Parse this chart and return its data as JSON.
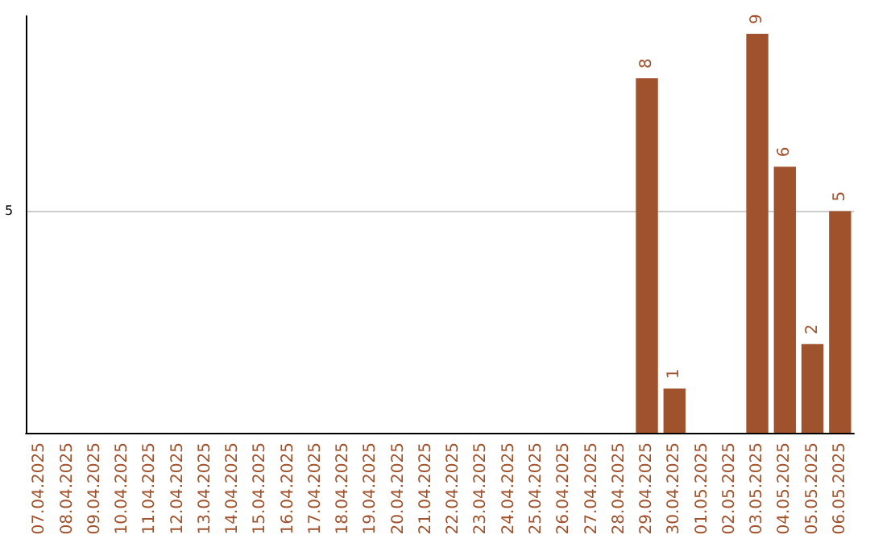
{
  "chart_data": {
    "type": "bar",
    "categories": [
      "07.04.2025",
      "08.04.2025",
      "09.04.2025",
      "10.04.2025",
      "11.04.2025",
      "12.04.2025",
      "13.04.2025",
      "14.04.2025",
      "15.04.2025",
      "16.04.2025",
      "17.04.2025",
      "18.04.2025",
      "19.04.2025",
      "20.04.2025",
      "21.04.2025",
      "22.04.2025",
      "23.04.2025",
      "24.04.2025",
      "25.04.2025",
      "26.04.2025",
      "27.04.2025",
      "28.04.2025",
      "29.04.2025",
      "30.04.2025",
      "01.05.2025",
      "02.05.2025",
      "03.05.2025",
      "04.05.2025",
      "05.05.2025",
      "06.05.2025"
    ],
    "values": [
      null,
      null,
      null,
      null,
      null,
      null,
      null,
      null,
      null,
      null,
      null,
      null,
      null,
      null,
      null,
      null,
      null,
      null,
      null,
      null,
      null,
      null,
      8,
      1,
      null,
      null,
      9,
      6,
      2,
      5
    ],
    "data_labels": true,
    "color": "#a0522d",
    "ylim": [
      0,
      9.4
    ],
    "yticks": [
      5
    ],
    "grid": "y"
  }
}
